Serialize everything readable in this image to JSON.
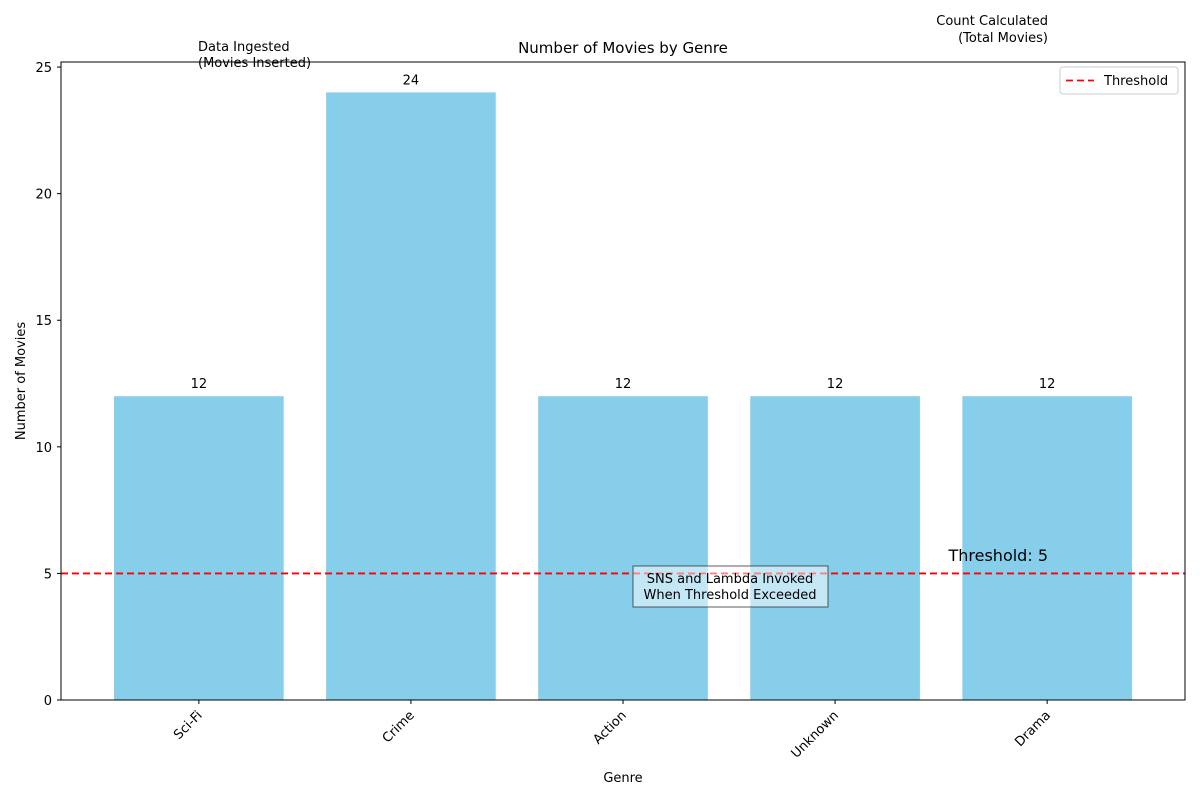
{
  "chart_data": {
    "type": "bar",
    "title": "Number of Movies by Genre",
    "xlabel": "Genre",
    "ylabel": "Number of Movies",
    "categories": [
      "Sci-Fi",
      "Crime",
      "Action",
      "Unknown",
      "Drama"
    ],
    "values": [
      12,
      24,
      12,
      12,
      12
    ],
    "data_labels": [
      "12",
      "24",
      "12",
      "12",
      "12"
    ],
    "ylim": [
      0,
      25.2
    ],
    "yticks": [
      "0",
      "5",
      "10",
      "15",
      "20",
      "25"
    ],
    "bar_color": "#87CEEB",
    "grid": false,
    "threshold": {
      "value": 5,
      "legend_label": "Threshold",
      "annotation": "Threshold: 5",
      "color": "#ff0000"
    },
    "legend": {
      "placement": "upper right",
      "entries": [
        "Threshold"
      ]
    },
    "annotations": {
      "ingested": {
        "lines": [
          "Data Ingested",
          "(Movies Inserted)"
        ],
        "color": "#008000"
      },
      "count": {
        "lines": [
          "Count Calculated",
          "(Total Movies)"
        ],
        "color": "#0000ff"
      },
      "sns": {
        "lines": [
          "SNS and Lambda Invoked",
          "When Threshold Exceeded"
        ],
        "color": "#ffa500"
      }
    }
  }
}
